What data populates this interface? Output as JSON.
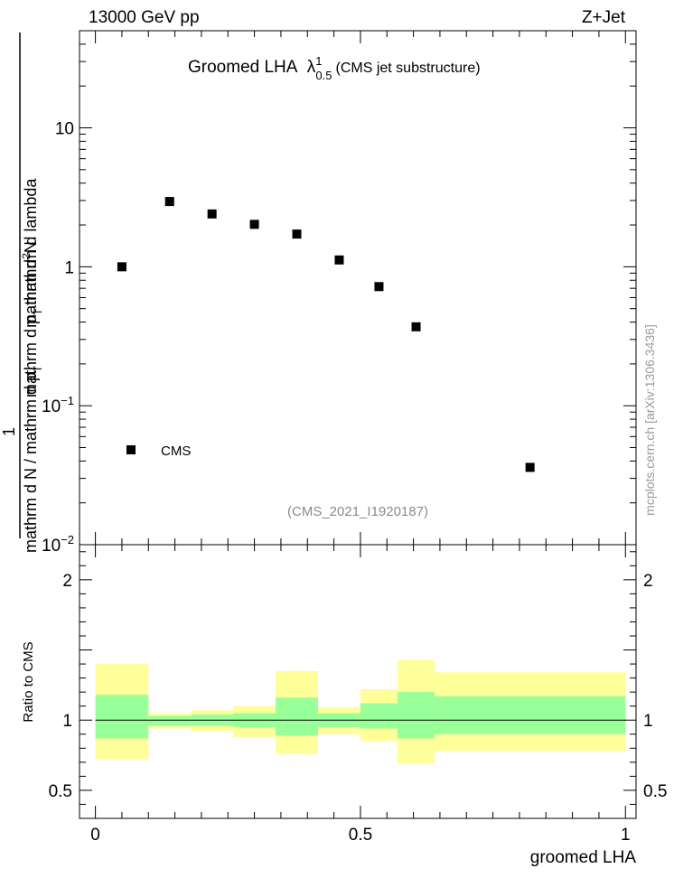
{
  "header": {
    "left": "13000 GeV pp",
    "right": "Z+Jet"
  },
  "plot_title": {
    "main": "Groomed LHA",
    "symbol": "λ",
    "sup": "1",
    "sub": "0.5",
    "note": "(CMS jet substructure)"
  },
  "analysis_id": "(CMS_2021_I1920187)",
  "watermark": "mcplots.cern.ch [arXiv:1306.3436]",
  "y_axis_label": {
    "numerator": "mathrm d²N",
    "numerator_sup": "2",
    "numerator_text": "mathrm d",
    "numerator_tail": "N",
    "upper_denominator": "mathrm d p",
    "upper_denominator_sub": "T",
    "upper_denominator_tail": "mathrm d lambda",
    "one": "1",
    "lower_line": "mathrm d N / mathrm d p",
    "lower_sub": "T"
  },
  "chart_data": [
    {
      "type": "scatter",
      "panel": "main",
      "yscale": "log",
      "ylim": [
        0.01,
        50
      ],
      "xlim": [
        -0.03,
        1.02
      ],
      "y_ticks": [
        {
          "value": 10,
          "label": "10"
        },
        {
          "value": 1,
          "label": "1"
        },
        {
          "value": 0.1,
          "label": "10",
          "exp": "−1"
        },
        {
          "value": 0.01,
          "label": "10",
          "exp": "−2"
        }
      ],
      "series": [
        {
          "name": "CMS",
          "x": [
            0.05,
            0.14,
            0.22,
            0.3,
            0.38,
            0.46,
            0.535,
            0.605,
            0.82
          ],
          "values": [
            1.0,
            2.95,
            2.4,
            2.02,
            1.72,
            1.12,
            0.72,
            0.37,
            0.036
          ]
        }
      ],
      "legend": {
        "entries": [
          "CMS"
        ],
        "position": "lower-left"
      }
    },
    {
      "type": "area",
      "panel": "ratio",
      "ylabel": "Ratio to CMS",
      "xlabel": "groomed LHA",
      "xlim": [
        -0.03,
        1.02
      ],
      "ylim": [
        0.3,
        2.25
      ],
      "x_ticks": [
        {
          "value": 0,
          "label": "0"
        },
        {
          "value": 0.5,
          "label": "0.5"
        },
        {
          "value": 1,
          "label": "1"
        }
      ],
      "y_ticks": [
        {
          "value": 0.5,
          "label": "0.5"
        },
        {
          "value": 1,
          "label": "1"
        },
        {
          "value": 2,
          "label": "2"
        }
      ],
      "reference_line": 1,
      "bins": [
        {
          "lo": 0.0,
          "hi": 0.1,
          "outer": [
            0.72,
            1.4
          ],
          "inner": [
            0.87,
            1.18
          ]
        },
        {
          "lo": 0.1,
          "hi": 0.18,
          "outer": [
            0.94,
            1.05
          ],
          "inner": [
            0.96,
            1.03
          ]
        },
        {
          "lo": 0.18,
          "hi": 0.26,
          "outer": [
            0.92,
            1.07
          ],
          "inner": [
            0.96,
            1.04
          ]
        },
        {
          "lo": 0.26,
          "hi": 0.34,
          "outer": [
            0.88,
            1.1
          ],
          "inner": [
            0.95,
            1.05
          ]
        },
        {
          "lo": 0.34,
          "hi": 0.42,
          "outer": [
            0.76,
            1.35
          ],
          "inner": [
            0.89,
            1.16
          ]
        },
        {
          "lo": 0.42,
          "hi": 0.5,
          "outer": [
            0.9,
            1.09
          ],
          "inner": [
            0.95,
            1.05
          ]
        },
        {
          "lo": 0.5,
          "hi": 0.57,
          "outer": [
            0.85,
            1.22
          ],
          "inner": [
            0.94,
            1.12
          ]
        },
        {
          "lo": 0.57,
          "hi": 0.64,
          "outer": [
            0.69,
            1.43
          ],
          "inner": [
            0.87,
            1.2
          ]
        },
        {
          "lo": 0.64,
          "hi": 1.0,
          "outer": [
            0.78,
            1.34
          ],
          "inner": [
            0.9,
            1.17
          ]
        }
      ],
      "colors": {
        "outer": "#ffff99",
        "inner": "#99ff99"
      }
    }
  ]
}
